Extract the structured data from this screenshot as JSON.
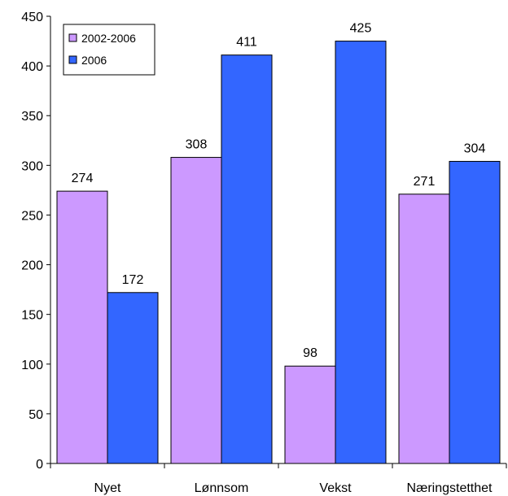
{
  "chart_data": {
    "type": "bar",
    "title": "",
    "xlabel": "",
    "ylabel": "",
    "categories": [
      "Nyet",
      "Lønnsom",
      "Vekst",
      "Næringstetthet"
    ],
    "series": [
      {
        "name": "2002-2006",
        "values": [
          274,
          308,
          98,
          271
        ],
        "color": "#cc99ff"
      },
      {
        "name": "2006",
        "values": [
          172,
          411,
          425,
          304
        ],
        "color": "#3366ff"
      }
    ],
    "ylim": [
      0,
      450
    ],
    "yticks": [
      0,
      50,
      100,
      150,
      200,
      250,
      300,
      350,
      400,
      450
    ],
    "grid": false,
    "legend": "top-left",
    "data_labels": true
  }
}
